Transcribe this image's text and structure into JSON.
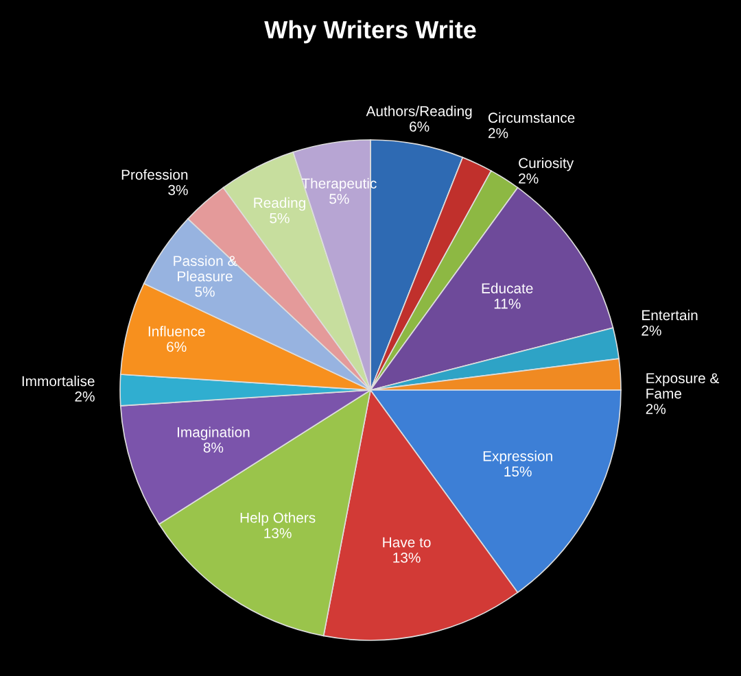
{
  "chart_data": {
    "type": "pie",
    "title": "Why Writers Write",
    "categories": [
      "Authors/Reading",
      "Circumstance",
      "Curiosity",
      "Educate",
      "Entertain",
      "Exposure &\nFame",
      "Expression",
      "Have to",
      "Help Others",
      "Imagination",
      "Immortalise",
      "Influence",
      "Passion &\nPleasure",
      "Profession",
      "Reading",
      "Therapeutic"
    ],
    "values": [
      6,
      2,
      2,
      11,
      2,
      2,
      15,
      13,
      13,
      8,
      2,
      6,
      5,
      3,
      5,
      5
    ],
    "colors": [
      "#2e6ab3",
      "#c0302c",
      "#8db843",
      "#6e4a9a",
      "#2ea3c6",
      "#f08a22",
      "#3d7fd6",
      "#d23a36",
      "#9ac44b",
      "#7b54ab",
      "#30aed0",
      "#f7901e",
      "#97b3e0",
      "#e49a9a",
      "#c7de9e",
      "#b7a5d3"
    ],
    "value_labels": [
      "6%",
      "2%",
      "2%",
      "11%",
      "2%",
      "2%",
      "15%",
      "13%",
      "13%",
      "8%",
      "2%",
      "6%",
      "5%",
      "3%",
      "5%",
      "5%"
    ],
    "legend": false
  }
}
